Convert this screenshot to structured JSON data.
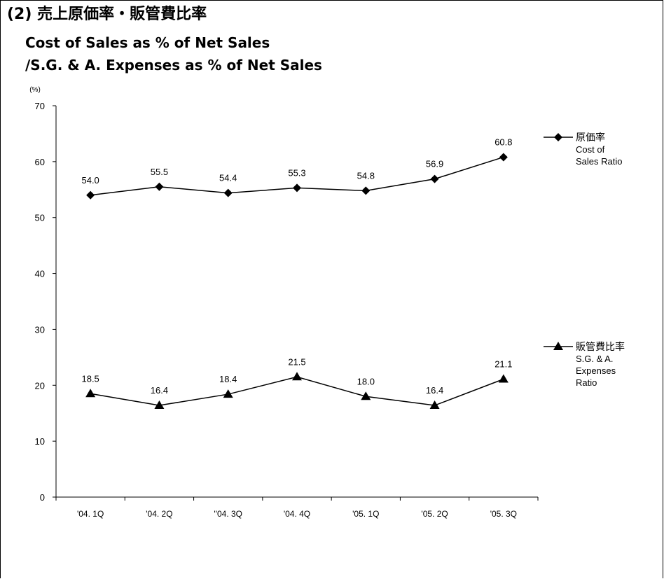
{
  "title": {
    "line1": "(2) 売上原価率・販管費比率",
    "line2": "Cost of Sales as % of Net Sales",
    "line3": "/S.G. & A. Expenses as % of Net Sales"
  },
  "chart_data": {
    "type": "line",
    "unit_label": "(%)",
    "ylim": [
      0,
      70
    ],
    "yticks": [
      0,
      10,
      20,
      30,
      40,
      50,
      60,
      70
    ],
    "grid": false,
    "legend_position": "right",
    "categories": [
      "'04. 1Q",
      "'04. 2Q",
      "''04. 3Q",
      "'04. 4Q",
      "'05. 1Q",
      "'05. 2Q",
      "'05. 3Q"
    ],
    "series": [
      {
        "name": "原価率",
        "legend_lines": [
          "原価率",
          "Cost of",
          "Sales Ratio"
        ],
        "marker": "diamond",
        "color": "#000000",
        "values": [
          54.0,
          55.5,
          54.4,
          55.3,
          54.8,
          56.9,
          60.8
        ],
        "labels": [
          "54.0",
          "55.5",
          "54.4",
          "55.3",
          "54.8",
          "56.9",
          "60.8"
        ]
      },
      {
        "name": "販管費比率",
        "legend_lines": [
          "販管費比率",
          "S.G. & A.",
          "Expenses",
          "Ratio"
        ],
        "marker": "triangle",
        "color": "#000000",
        "values": [
          18.5,
          16.4,
          18.4,
          21.5,
          18.0,
          16.4,
          21.1
        ],
        "labels": [
          "18.5",
          "16.4",
          "18.4",
          "21.5",
          "18.0",
          "16.4",
          "21.1"
        ]
      }
    ]
  }
}
